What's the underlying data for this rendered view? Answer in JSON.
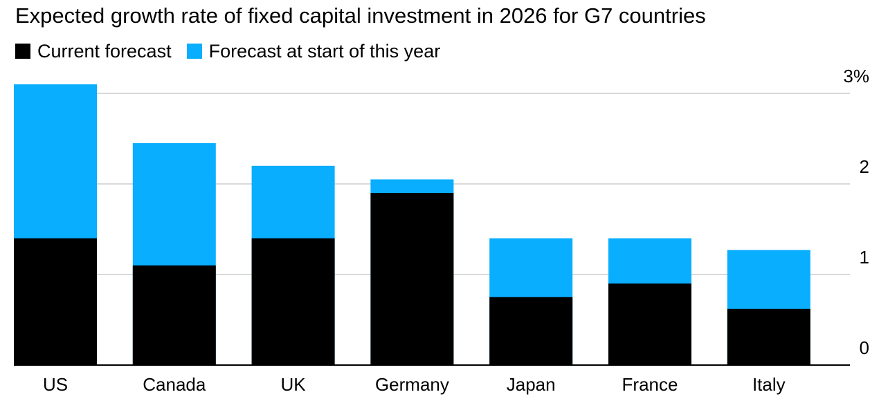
{
  "chart_data": {
    "type": "bar",
    "stacking": "overlay",
    "title": "Expected growth rate of fixed capital investment in 2026 for G7 countries",
    "categories": [
      "US",
      "Canada",
      "UK",
      "Germany",
      "Japan",
      "France",
      "Italy"
    ],
    "series": [
      {
        "name": "Current forecast",
        "color": "#000000",
        "values": [
          1.4,
          1.1,
          1.4,
          1.9,
          0.75,
          0.9,
          0.62
        ]
      },
      {
        "name": "Forecast at start of this year",
        "color": "#0aaeff",
        "values": [
          3.1,
          2.45,
          2.2,
          2.05,
          1.4,
          1.4,
          1.27
        ]
      }
    ],
    "yaxis": {
      "position": "right",
      "ticks": [
        0,
        1,
        2,
        3
      ],
      "tick_labels": [
        "0",
        "1",
        "2",
        "3%"
      ],
      "ylim": [
        0,
        3.1
      ]
    },
    "grid": true,
    "legend_position": "top-left"
  }
}
